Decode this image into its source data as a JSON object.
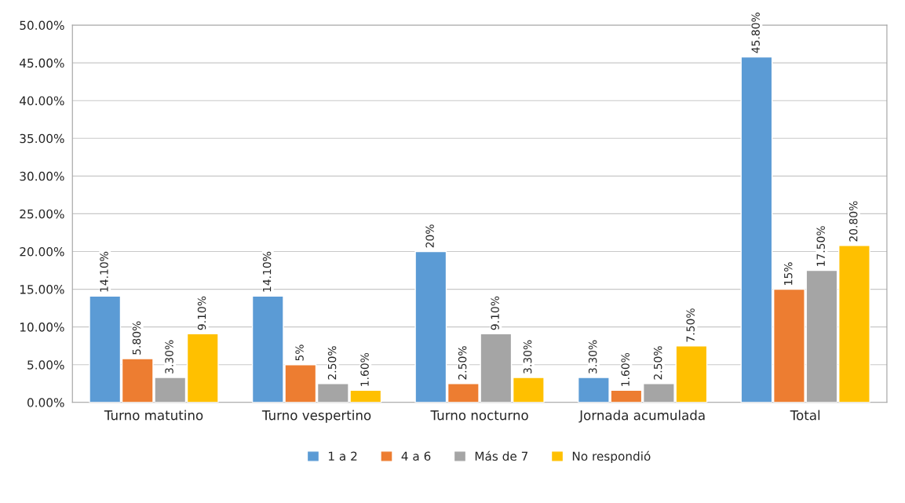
{
  "chart_data": {
    "type": "bar",
    "categories": [
      "Turno matutino",
      "Turno vespertino",
      "Turno nocturno",
      "Jornada acumulada",
      "Total"
    ],
    "series": [
      {
        "name": "1 a 2",
        "color": "#5b9bd5",
        "values": [
          14.1,
          14.1,
          20,
          3.3,
          45.8
        ],
        "value_labels": [
          "14.10%",
          "14.10%",
          "20%",
          "3.30%",
          "45.80%"
        ]
      },
      {
        "name": "4 a 6",
        "color": "#ed7d31",
        "values": [
          5.8,
          5,
          2.5,
          1.6,
          15
        ],
        "value_labels": [
          "5.80%",
          "5%",
          "2.50%",
          "1.60%",
          "15%"
        ]
      },
      {
        "name": "Más de 7",
        "color": "#a5a5a5",
        "values": [
          3.3,
          2.5,
          9.1,
          2.5,
          17.5
        ],
        "value_labels": [
          "3.30%",
          "2.50%",
          "9.10%",
          "2.50%",
          "17.50%"
        ]
      },
      {
        "name": "No respondió",
        "color": "#ffc000",
        "values": [
          9.1,
          1.6,
          3.3,
          7.5,
          20.8
        ],
        "value_labels": [
          "9.10%",
          "1.60%",
          "3.30%",
          "7.50%",
          "20.80%"
        ]
      }
    ],
    "ylim": [
      0,
      50
    ],
    "yticks": [
      {
        "value": 0,
        "label": "0.00%"
      },
      {
        "value": 5,
        "label": "5.00%"
      },
      {
        "value": 10,
        "label": "10.00%"
      },
      {
        "value": 15,
        "label": "15.00%"
      },
      {
        "value": 20,
        "label": "20.00%"
      },
      {
        "value": 25,
        "label": "25.00%"
      },
      {
        "value": 30,
        "label": "30.00%"
      },
      {
        "value": 35,
        "label": "35.00%"
      },
      {
        "value": 40,
        "label": "40.00%"
      },
      {
        "value": 45,
        "label": "45.00%"
      },
      {
        "value": 50,
        "label": "50.00%"
      }
    ],
    "grid": "y",
    "legend": "bottom"
  }
}
